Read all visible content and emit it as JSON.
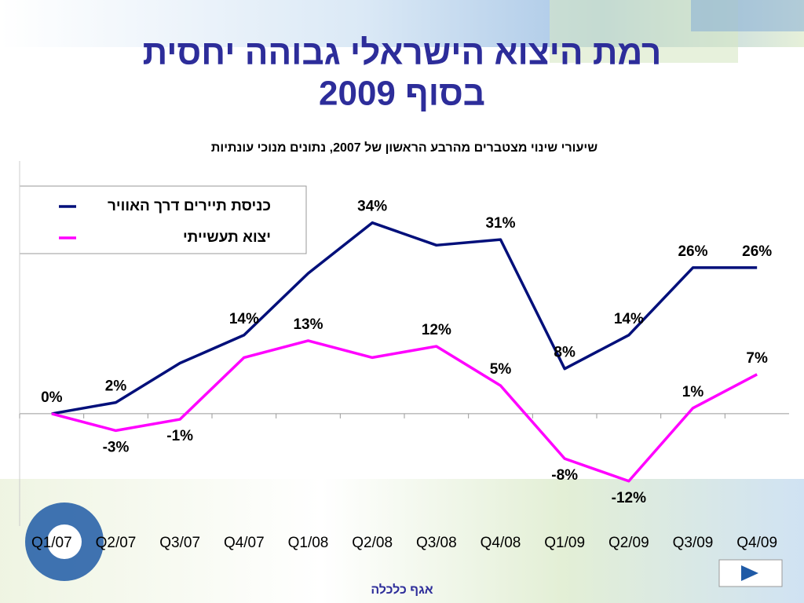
{
  "chart_data": {
    "type": "line",
    "title": "רמת היצוא הישראלי גבוהה יחסית",
    "title_line2": "בסוף 2009",
    "subtitle": "שיעורי שינוי מצטברים מהרבע הראשון של 2007, נתונים מנוכי עונתיות",
    "footer": "אגף כלכלה",
    "categories": [
      "Q1/07",
      "Q2/07",
      "Q3/07",
      "Q4/07",
      "Q1/08",
      "Q2/08",
      "Q3/08",
      "Q4/08",
      "Q1/09",
      "Q2/09",
      "Q3/09",
      "Q4/09"
    ],
    "series": [
      {
        "name": "כניסת תיירים דרך האוויר",
        "color": "#000f7a",
        "values": [
          0,
          2,
          9,
          14,
          25,
          34,
          30,
          31,
          8,
          14,
          26,
          26
        ],
        "value_labels": [
          "0%",
          "2%",
          null,
          "14%",
          null,
          "34%",
          null,
          "31%",
          "8%",
          "14%",
          "26%",
          "26%"
        ]
      },
      {
        "name": "יצוא תעשייתי",
        "color": "#ff00ff",
        "values": [
          0,
          -3,
          -1,
          10,
          13,
          10,
          12,
          5,
          -8,
          -12,
          1,
          7
        ],
        "value_labels": [
          null,
          "-3%",
          "-1%",
          null,
          "13%",
          null,
          "12%",
          "5%",
          "-8%",
          "-12%",
          "1%",
          "7%"
        ]
      }
    ],
    "ylim": [
      -20,
      45
    ],
    "legend": "top-left"
  }
}
